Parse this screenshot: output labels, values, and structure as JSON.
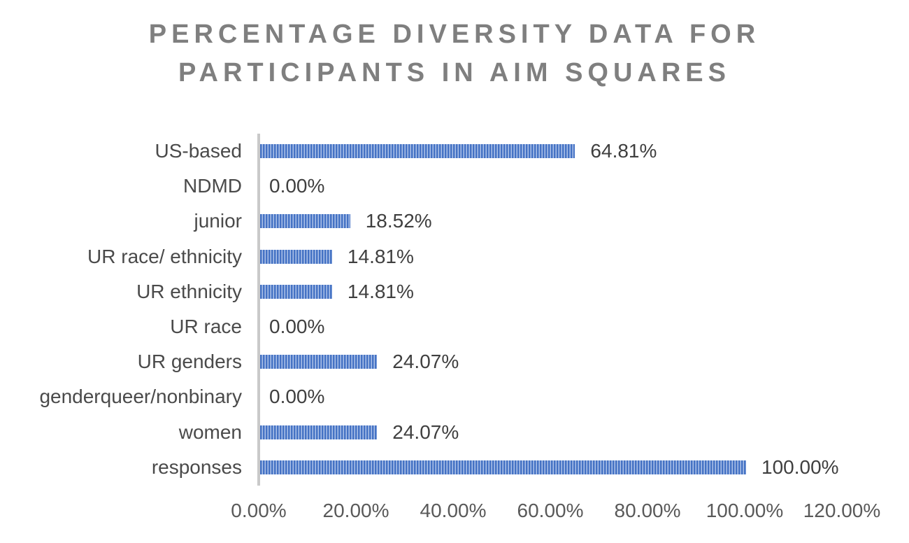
{
  "title": {
    "line1": "PERCENTAGE DIVERSITY DATA FOR",
    "line2": "PARTICIPANTS IN AIM SQUARES"
  },
  "chart_data": {
    "type": "bar",
    "orientation": "horizontal",
    "title": "PERCENTAGE DIVERSITY DATA FOR PARTICIPANTS IN AIM SQUARES",
    "categories": [
      "US-based",
      "NDMD",
      "junior",
      "UR race/ ethnicity",
      "UR ethnicity",
      "UR race",
      "UR genders",
      "genderqueer/nonbinary",
      "women",
      "responses"
    ],
    "values": [
      64.81,
      0.0,
      18.52,
      14.81,
      14.81,
      0.0,
      24.07,
      0.0,
      24.07,
      100.0
    ],
    "value_labels": [
      "64.81%",
      "0.00%",
      "18.52%",
      "14.81%",
      "14.81%",
      "0.00%",
      "24.07%",
      "0.00%",
      "24.07%",
      "100.00%"
    ],
    "x_ticks": [
      "0.00%",
      "20.00%",
      "40.00%",
      "60.00%",
      "80.00%",
      "100.00%",
      "120.00%"
    ],
    "x_tick_values": [
      0,
      20,
      40,
      60,
      80,
      100,
      120
    ],
    "xlim": [
      0,
      120
    ],
    "grid": false,
    "legend": "none",
    "bar_fill_pattern": "vertical-stripes",
    "colors": {
      "bar_stripe_dark": "#4472c4",
      "bar_stripe_light": "#aec3e9",
      "axis_line": "#c9c9c9",
      "title_text": "#7f7f7f",
      "category_text": "#4a4a4a",
      "value_text": "#3f3f3f",
      "tick_text": "#595959"
    }
  }
}
